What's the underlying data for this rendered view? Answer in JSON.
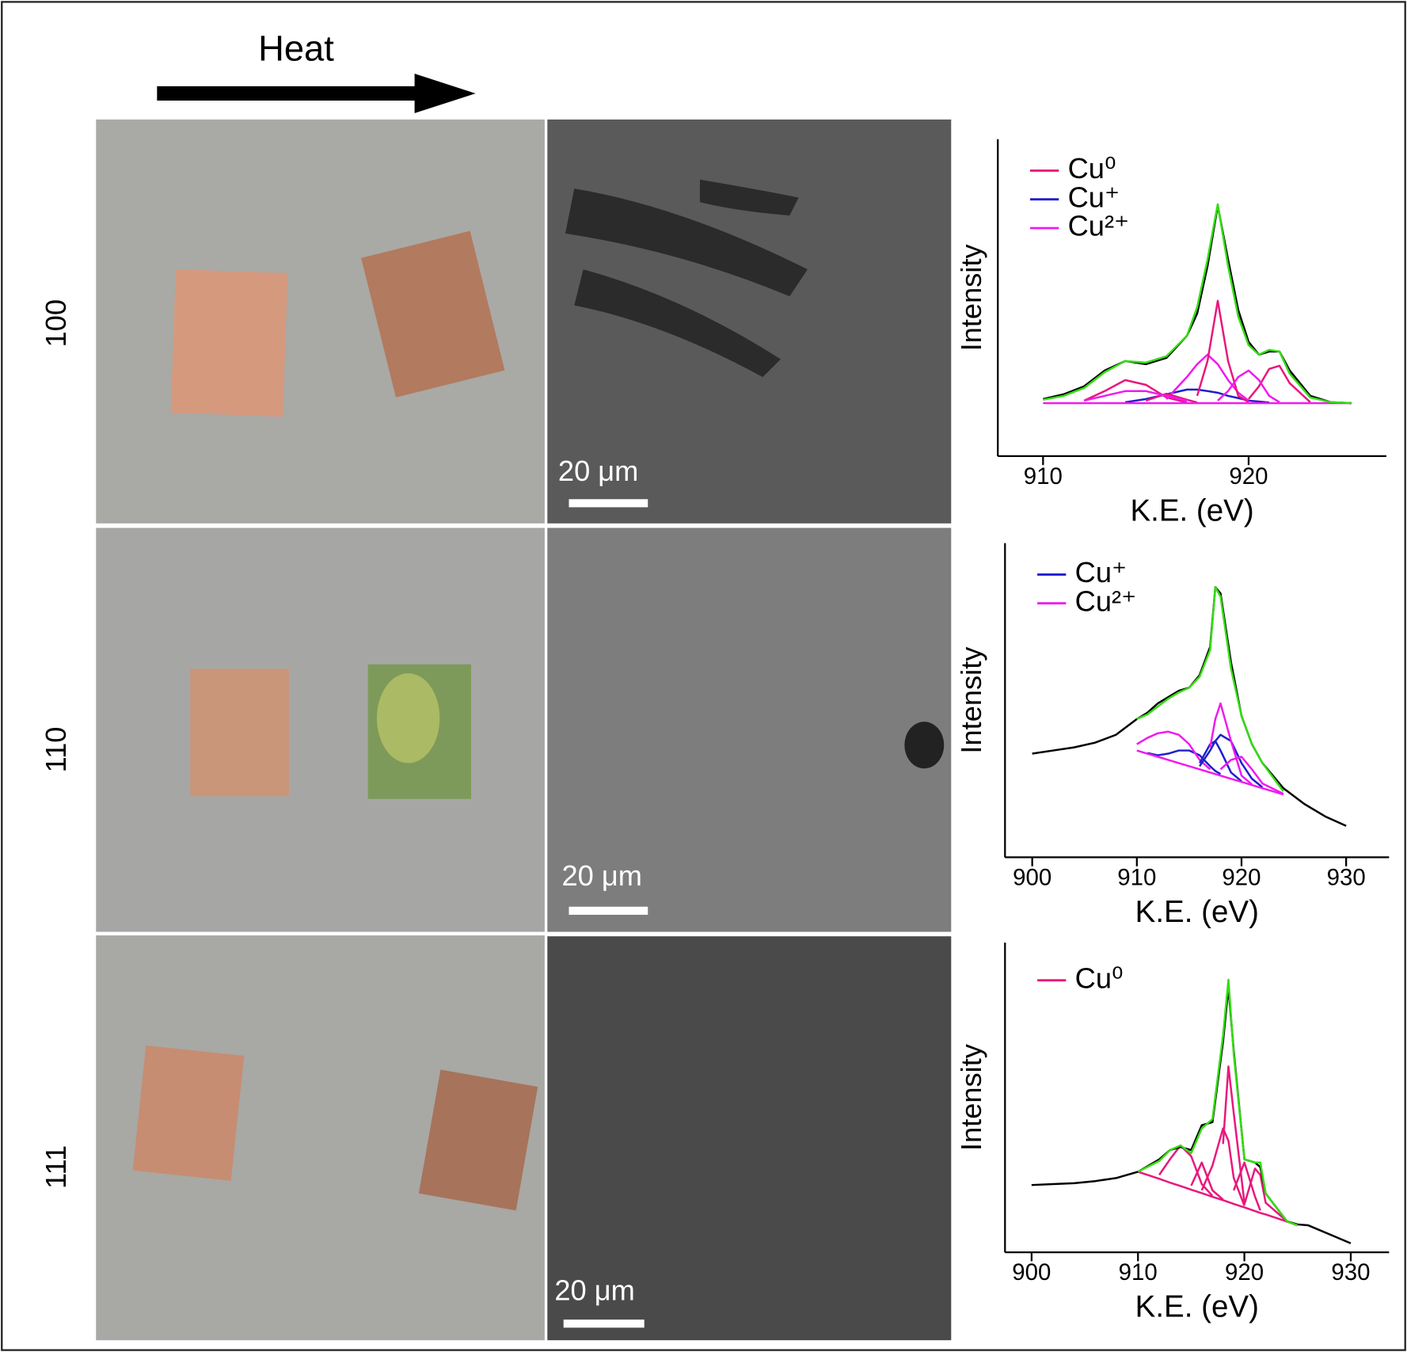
{
  "figure": {
    "arrow_label": "Heat",
    "rows": [
      {
        "label": "100",
        "scale_bar": "20 μm"
      },
      {
        "label": "110",
        "scale_bar": "20 μm"
      },
      {
        "label": "111",
        "scale_bar": "20 μm"
      }
    ]
  },
  "chart_data": [
    {
      "type": "line",
      "x_label": "K.E. (eV)",
      "y_label": "Intensity",
      "x": [
        910,
        911,
        912,
        913,
        914,
        915,
        916,
        917,
        917.5,
        918,
        918.5,
        919,
        919.5,
        920,
        920.5,
        921,
        921.5,
        922,
        923,
        924,
        925
      ],
      "xlim": [
        907.8,
        926.7
      ],
      "xticks": [
        910,
        920
      ],
      "ylim": [
        0,
        100
      ],
      "series": [
        {
          "name": "Cu⁰",
          "color": "#e8187c",
          "values": [
            null,
            null,
            17.5,
            20.5,
            24,
            22.5,
            18.5,
            16.9,
            null,
            null,
            null,
            null,
            null,
            null,
            null,
            null,
            null,
            null,
            null,
            null,
            null
          ]
        },
        {
          "name": "Cu⁺",
          "color": "#1f1fcc",
          "values": [
            null,
            null,
            null,
            null,
            17,
            18,
            19.5,
            21,
            21,
            20.5,
            20,
            19,
            18.3,
            17.5,
            17.2,
            16.9,
            null,
            null,
            null,
            null,
            null
          ]
        },
        {
          "name": "Cu²⁺",
          "color": "#f01af0",
          "values": [
            null,
            null,
            null,
            null,
            null,
            null,
            18,
            25,
            29,
            32,
            29,
            24,
            20,
            17.5,
            null,
            null,
            null,
            null,
            null,
            null,
            null
          ]
        },
        {
          "color": "#e8187c",
          "values": [
            null,
            null,
            null,
            null,
            null,
            17.5,
            19.7,
            17.8,
            16.9,
            null,
            null,
            null,
            null,
            null,
            null,
            null,
            null,
            null,
            null,
            null,
            null
          ]
        },
        {
          "color": "#e8187c",
          "values": [
            null,
            null,
            null,
            null,
            null,
            null,
            null,
            null,
            19,
            30,
            49,
            30,
            19,
            17,
            null,
            null,
            null,
            null,
            null,
            null,
            null
          ]
        },
        {
          "color": "#e8187c",
          "values": [
            null,
            null,
            null,
            null,
            null,
            null,
            null,
            null,
            null,
            null,
            null,
            null,
            null,
            18,
            22,
            27.5,
            28.5,
            23,
            17,
            null,
            null
          ]
        },
        {
          "color": "#f01af0",
          "values": [
            null,
            null,
            null,
            null,
            null,
            null,
            null,
            null,
            null,
            null,
            17.5,
            20.5,
            25,
            27,
            24,
            19,
            17,
            null,
            null,
            null,
            null
          ]
        },
        {
          "color": "#f01af0",
          "values": [
            null,
            null,
            17.5,
            19,
            20.5,
            20.5,
            19,
            17.5,
            null,
            null,
            null,
            null,
            null,
            null,
            null,
            null,
            null,
            null,
            null,
            null,
            null
          ]
        },
        {
          "color": "#f01af0",
          "values": [
            16.7,
            16.7,
            16.7,
            16.7,
            16.7,
            16.7,
            16.7,
            16.7,
            16.7,
            16.7,
            16.7,
            16.7,
            16.7,
            16.7,
            16.7,
            16.7,
            16.7,
            16.7,
            16.7,
            16.7,
            16.7
          ]
        },
        {
          "color": "#000000",
          "values": [
            18,
            19.5,
            22,
            27,
            30,
            29,
            31,
            38,
            45,
            60,
            79,
            62,
            46,
            36,
            32,
            33,
            33,
            27,
            19,
            17,
            16.7
          ]
        },
        {
          "color": "#33dd11",
          "values": [
            17.8,
            19,
            21.5,
            26.5,
            30,
            29.5,
            31.5,
            38,
            47,
            62,
            79.5,
            60,
            44,
            35,
            32,
            33.5,
            33,
            26,
            18.5,
            17,
            16.7
          ]
        }
      ]
    },
    {
      "type": "line",
      "x_label": "K.E. (eV)",
      "y_label": "Intensity",
      "x": [
        900,
        902,
        904,
        906,
        908,
        910,
        911,
        912,
        913,
        914,
        915,
        916,
        917,
        917.5,
        918,
        919,
        920,
        921,
        922,
        924,
        926,
        928,
        930
      ],
      "xlim": [
        897.4,
        934.1
      ],
      "xticks": [
        900,
        910,
        920,
        930
      ],
      "ylim": [
        0,
        100
      ],
      "series": [
        {
          "name": "Cu⁺",
          "color": "#1f1fcc",
          "values": [
            null,
            null,
            null,
            null,
            null,
            null,
            33.2,
            32.5,
            33,
            34,
            34,
            32.5,
            29,
            27.5,
            26.5,
            null,
            null,
            null,
            null,
            null,
            null,
            null,
            null
          ]
        },
        {
          "name": "Cu²⁺",
          "color": "#f01af0",
          "values": [
            null,
            null,
            null,
            null,
            null,
            36,
            38,
            39.5,
            40,
            39,
            36,
            31,
            28,
            null,
            null,
            null,
            null,
            null,
            null,
            null,
            null,
            null,
            null
          ]
        },
        {
          "color": "#1f1fcc",
          "values": [
            null,
            null,
            null,
            null,
            null,
            null,
            null,
            null,
            null,
            null,
            null,
            30,
            36,
            37,
            34,
            27,
            24.2,
            null,
            null,
            null,
            null,
            null,
            null
          ]
        },
        {
          "color": "#1f1fcc",
          "values": [
            null,
            null,
            null,
            null,
            null,
            null,
            null,
            null,
            null,
            null,
            null,
            29,
            34,
            37,
            39,
            37,
            30,
            25,
            22.3,
            null,
            null,
            null,
            null
          ]
        },
        {
          "color": "#f01af0",
          "values": [
            null,
            null,
            null,
            null,
            null,
            null,
            null,
            null,
            null,
            null,
            null,
            null,
            35,
            44,
            49,
            37,
            26,
            23.2,
            null,
            null,
            null,
            null,
            null
          ]
        },
        {
          "color": "#f01af0",
          "values": [
            null,
            null,
            null,
            null,
            null,
            null,
            null,
            null,
            null,
            null,
            null,
            null,
            null,
            null,
            28,
            31,
            32,
            28,
            23.5,
            20.2,
            null,
            null,
            null
          ]
        },
        {
          "color": "#f01af0",
          "values": [
            null,
            null,
            null,
            null,
            null,
            34,
            33,
            32,
            31,
            30,
            29,
            28,
            27,
            26.5,
            26,
            25,
            24,
            23,
            22,
            20,
            null,
            null,
            null
          ]
        },
        {
          "color": "#000000",
          "values": [
            33,
            34,
            35,
            36.5,
            39,
            44,
            46,
            49,
            51,
            53,
            54,
            58,
            67,
            86,
            84,
            62,
            45,
            36,
            30,
            22,
            17,
            13,
            10
          ]
        },
        {
          "color": "#33dd11",
          "values": [
            null,
            null,
            null,
            null,
            null,
            44,
            45.5,
            48,
            50.5,
            52.5,
            54,
            57.5,
            66,
            86,
            83,
            60,
            45,
            36,
            30,
            21,
            null,
            null,
            null
          ]
        }
      ]
    },
    {
      "type": "line",
      "x_label": "K.E. (eV)",
      "y_label": "Intensity",
      "x": [
        900,
        902,
        904,
        906,
        908,
        910,
        912,
        913,
        914,
        915,
        916,
        917,
        918,
        918.5,
        919,
        920,
        921,
        921.5,
        922,
        924,
        925,
        926,
        928,
        930
      ],
      "xlim": [
        897.5,
        933.6
      ],
      "xticks": [
        900,
        910,
        920,
        930
      ],
      "ylim": [
        0,
        100
      ],
      "series": [
        {
          "name": "Cu⁰",
          "color": "#e8187c",
          "values": [
            null,
            null,
            null,
            null,
            null,
            null,
            25,
            30,
            34.5,
            31,
            22,
            18.2,
            null,
            null,
            null,
            null,
            null,
            null,
            null,
            null,
            null,
            null,
            null,
            null
          ]
        },
        {
          "color": "#e8187c",
          "values": [
            null,
            null,
            null,
            null,
            null,
            null,
            null,
            null,
            null,
            21.5,
            29,
            20,
            17,
            null,
            null,
            null,
            null,
            null,
            null,
            null,
            null,
            null,
            null,
            null
          ]
        },
        {
          "color": "#e8187c",
          "values": [
            null,
            null,
            null,
            null,
            null,
            null,
            null,
            null,
            null,
            null,
            20,
            28,
            40,
            36,
            24,
            15,
            null,
            null,
            null,
            null,
            null,
            null,
            null,
            null
          ]
        },
        {
          "color": "#e8187c",
          "values": [
            null,
            null,
            null,
            null,
            null,
            null,
            null,
            null,
            null,
            null,
            null,
            null,
            35,
            60,
            45,
            16,
            null,
            null,
            null,
            null,
            null,
            null,
            null,
            null
          ]
        },
        {
          "color": "#e8187c",
          "values": [
            null,
            null,
            null,
            null,
            null,
            null,
            null,
            null,
            null,
            null,
            null,
            null,
            null,
            null,
            20,
            29,
            18,
            13.5,
            null,
            null,
            null,
            null,
            null,
            null
          ]
        },
        {
          "color": "#e8187c",
          "values": [
            null,
            null,
            null,
            null,
            null,
            null,
            null,
            null,
            null,
            null,
            null,
            null,
            null,
            null,
            null,
            15.5,
            27,
            25,
            16,
            10,
            null,
            null,
            null,
            null
          ]
        },
        {
          "color": "#e8187c",
          "values": [
            null,
            null,
            null,
            null,
            null,
            26,
            23.7,
            22.5,
            21.4,
            20.2,
            19.1,
            17.9,
            16.8,
            16.2,
            15.6,
            14.5,
            13.3,
            12.7,
            12.2,
            9.9,
            8.7,
            null,
            null,
            null
          ]
        },
        {
          "color": "#000000",
          "values": [
            21.7,
            22,
            22.3,
            23,
            24,
            26,
            30,
            33,
            34,
            33,
            41,
            42,
            68,
            85.5,
            65,
            30,
            29,
            27.5,
            19,
            10,
            9,
            8.7,
            5.8,
            2.9
          ]
        },
        {
          "color": "#33dd11",
          "values": [
            null,
            null,
            null,
            null,
            null,
            26,
            29.5,
            33,
            34.5,
            32,
            40,
            43,
            70,
            88,
            64,
            30,
            29,
            29,
            19,
            10,
            8.7,
            null,
            null,
            null
          ]
        }
      ]
    }
  ]
}
